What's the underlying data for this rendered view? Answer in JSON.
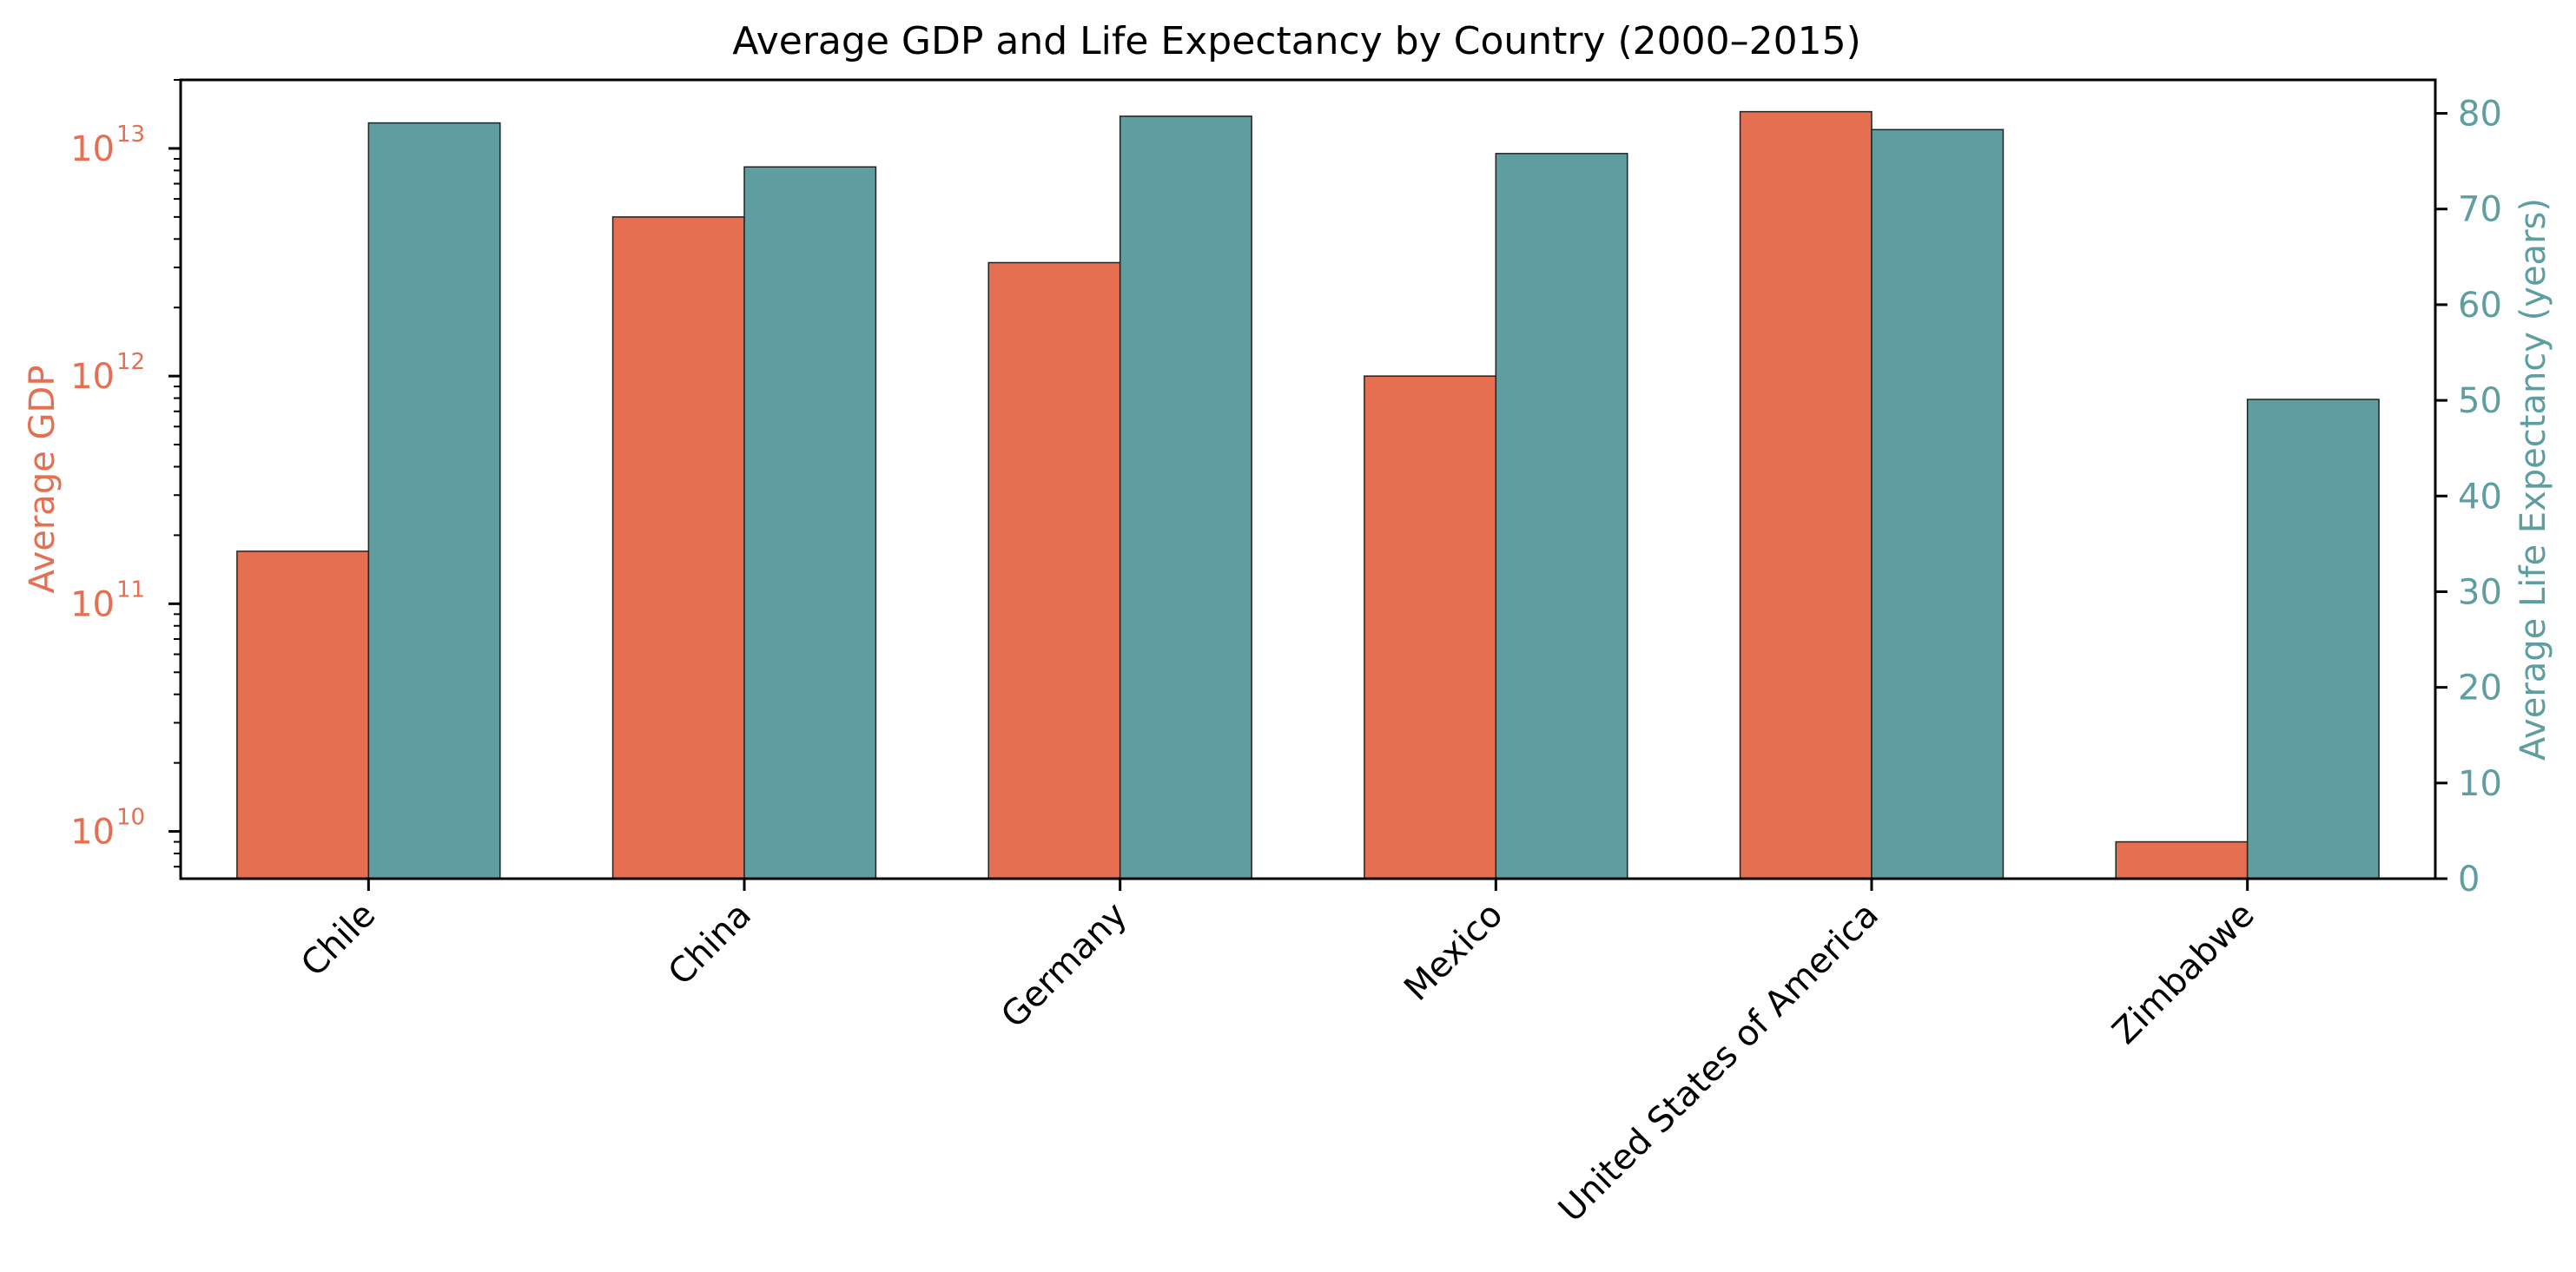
{
  "chart_data": {
    "type": "bar",
    "title": "Average GDP and Life Expectancy by Country (2000–2015)",
    "categories": [
      "Chile",
      "China",
      "Germany",
      "Mexico",
      "United States of America",
      "Zimbabwe"
    ],
    "series": [
      {
        "name": "Average GDP",
        "axis": "left",
        "color": "#E76F51",
        "values": [
          170000000000.0,
          5000000000000.0,
          3150000000000.0,
          1000000000000.0,
          14500000000000.0,
          9000000000.0
        ]
      },
      {
        "name": "Average Life Expectancy (years)",
        "axis": "right",
        "color": "#5F9EA0",
        "values": [
          79.0,
          74.4,
          79.7,
          75.8,
          78.3,
          50.1
        ]
      }
    ],
    "left_axis": {
      "label": "Average GDP",
      "scale": "log",
      "range": [
        6200000000.0,
        20000000000000.0
      ],
      "ticks": [
        {
          "value": 10000000000.0,
          "base": "10",
          "exp": "10"
        },
        {
          "value": 100000000000.0,
          "base": "10",
          "exp": "11"
        },
        {
          "value": 1000000000000.0,
          "base": "10",
          "exp": "12"
        },
        {
          "value": 10000000000000.0,
          "base": "10",
          "exp": "13"
        }
      ],
      "color": "#E76F51"
    },
    "right_axis": {
      "label": "Average Life Expectancy (years)",
      "scale": "linear",
      "range": [
        0,
        83.5
      ],
      "ticks": [
        "0",
        "10",
        "20",
        "30",
        "40",
        "50",
        "60",
        "70",
        "80"
      ],
      "color": "#5F9EA0"
    },
    "grid": false,
    "legend": "none"
  }
}
